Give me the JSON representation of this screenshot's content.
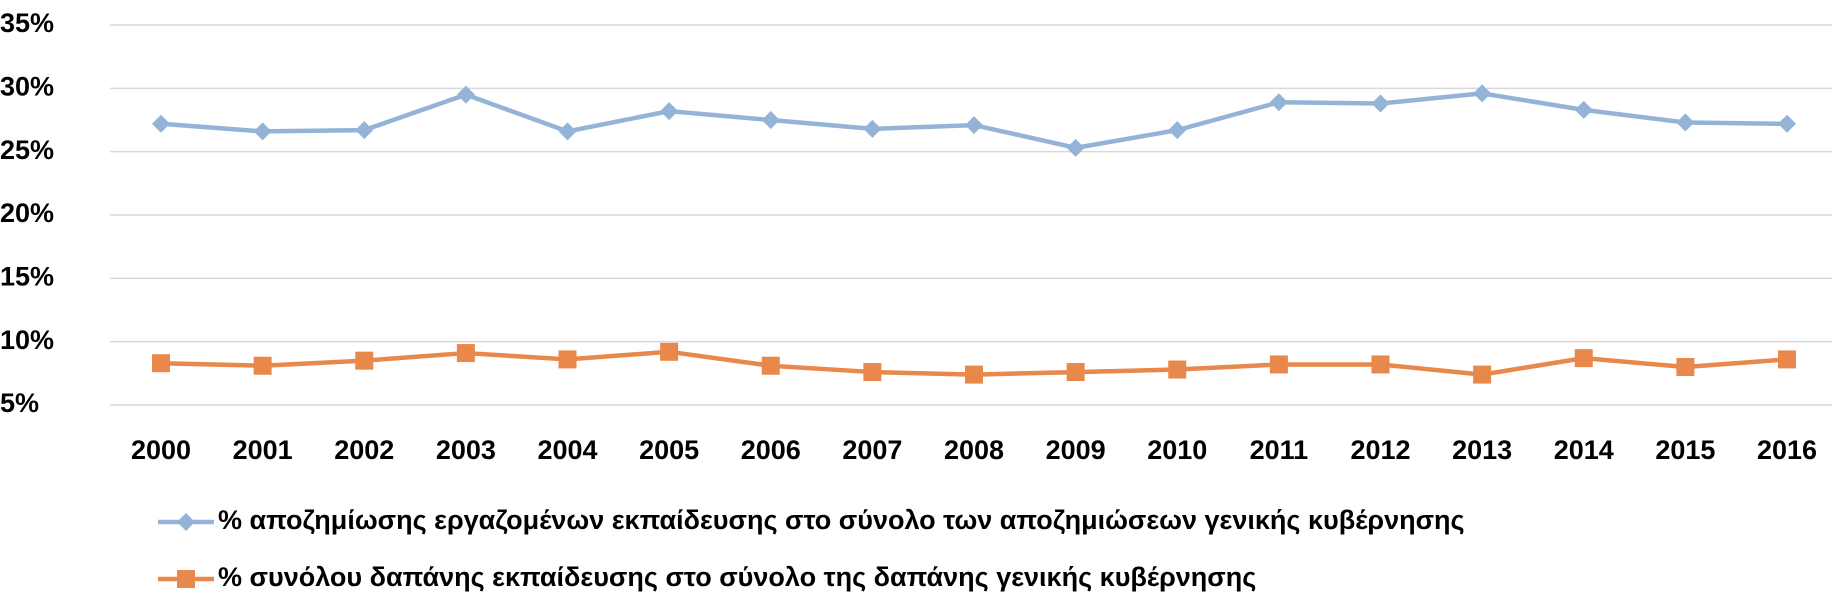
{
  "chart_data": {
    "type": "line",
    "categories": [
      "2000",
      "2001",
      "2002",
      "2003",
      "2004",
      "2005",
      "2006",
      "2007",
      "2008",
      "2009",
      "2010",
      "2011",
      "2012",
      "2013",
      "2014",
      "2015",
      "2016"
    ],
    "series": [
      {
        "name": "% αποζημίωσης εργαζομένων εκπαίδευσης στο σύνολο των αποζημιώσεων γενικής κυβέρνησης",
        "color": "#93b3d7",
        "marker": "diamond",
        "values": [
          27.2,
          26.6,
          26.7,
          29.5,
          26.6,
          28.2,
          27.5,
          26.8,
          27.1,
          25.3,
          26.7,
          28.9,
          28.8,
          29.6,
          28.3,
          27.3,
          27.2
        ]
      },
      {
        "name": "% συνόλου δαπάνης εκπαίδευσης στο σύνολο της δαπάνης γενικής κυβέρνησης",
        "color": "#e8884a",
        "marker": "square",
        "values": [
          8.3,
          8.1,
          8.5,
          9.1,
          8.6,
          9.2,
          8.1,
          7.6,
          7.4,
          7.6,
          7.8,
          8.2,
          8.2,
          7.4,
          8.7,
          8.0,
          8.6
        ]
      }
    ],
    "ylim": [
      5,
      35
    ],
    "yticks": [
      {
        "value": 5,
        "label": "5%"
      },
      {
        "value": 10,
        "label": "10%"
      },
      {
        "value": 15,
        "label": "15%"
      },
      {
        "value": 20,
        "label": "20%"
      },
      {
        "value": 25,
        "label": "25%"
      },
      {
        "value": 30,
        "label": "30%"
      },
      {
        "value": 35,
        "label": "35%"
      }
    ],
    "grid": true,
    "legend": "bottom"
  }
}
